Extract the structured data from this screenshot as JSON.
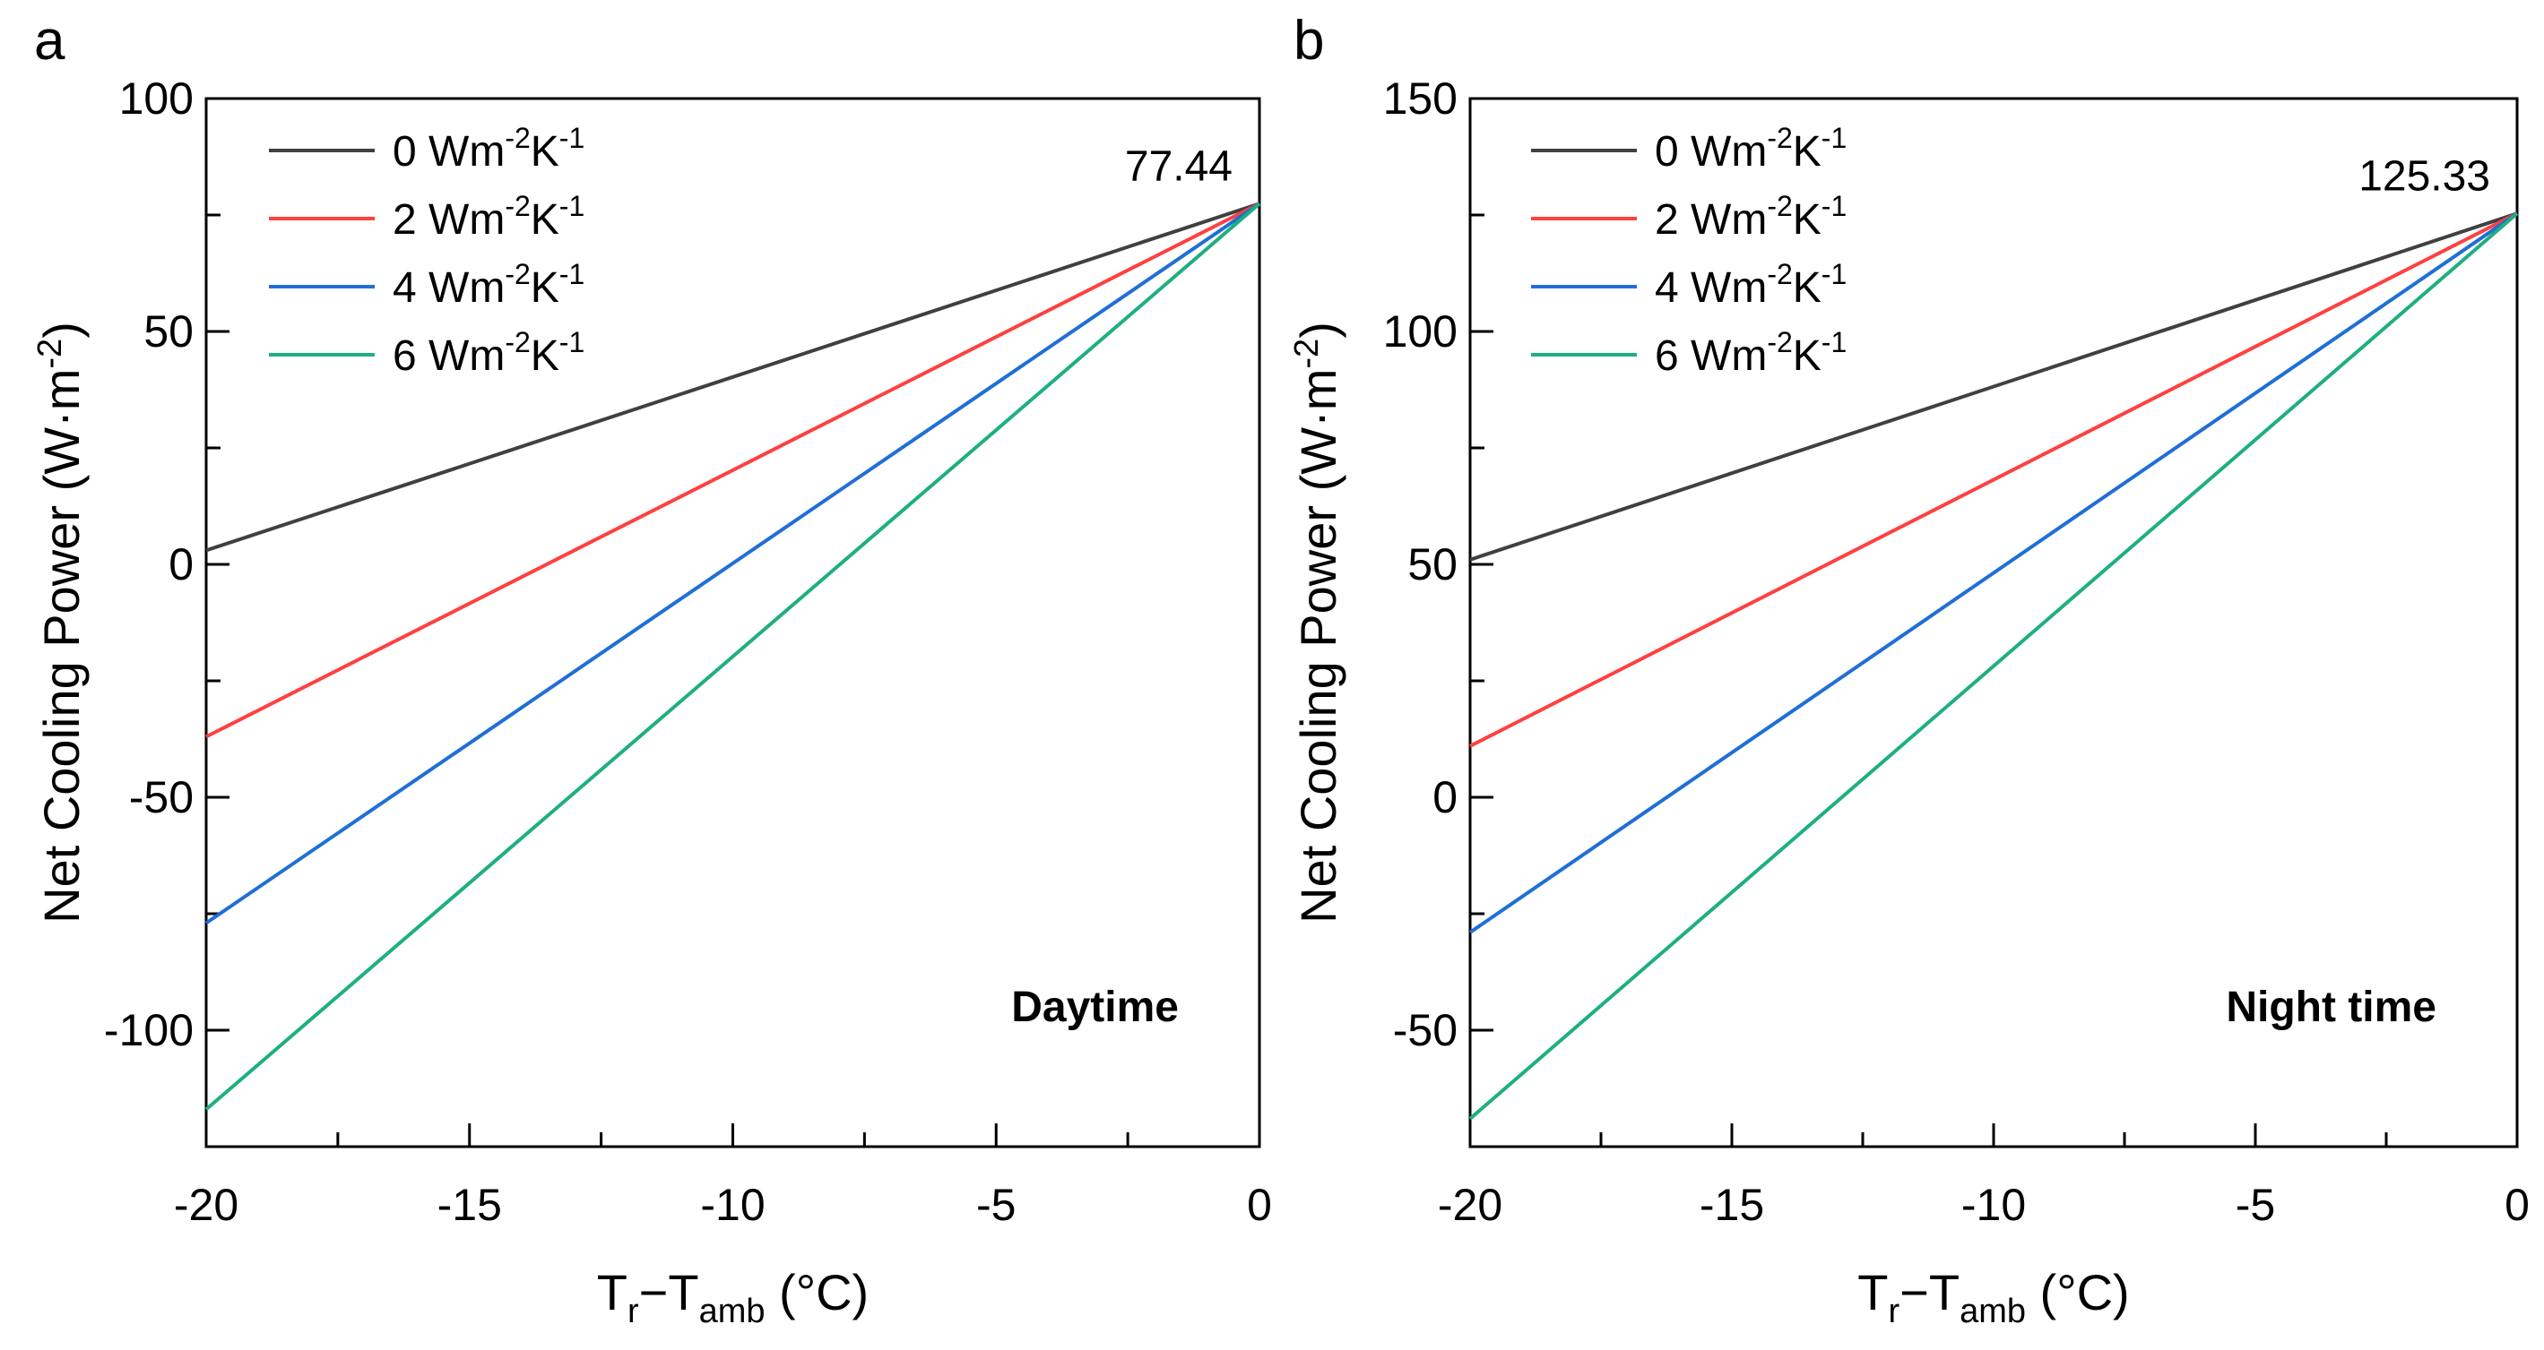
{
  "chart_data": [
    {
      "type": "line",
      "panel": "a",
      "xlabel": {
        "base": "T",
        "sub1": "r",
        "dash": "−T",
        "sub2": "amb",
        "unit": " (°C)"
      },
      "ylabel": {
        "text": "Net Cooling Power (W·m",
        "sup": "-2",
        "close": ")"
      },
      "xlim": [
        -20,
        0
      ],
      "ylim": [
        -125,
        100
      ],
      "xticks": [
        -20,
        -15,
        -10,
        -5,
        0
      ],
      "yticks": [
        -100,
        -50,
        0,
        50,
        100
      ],
      "annotation": {
        "text": "77.44",
        "x": 0,
        "y": 77.44
      },
      "condition_label": "Daytime",
      "legend_placement": "top-left",
      "series": [
        {
          "name": "0 Wm-2K-1",
          "label": {
            "num": "0",
            "unit": "Wm",
            "sup1": "-2",
            "k": "K",
            "sup2": "-1"
          },
          "color": "#404040",
          "x": [
            -20,
            0
          ],
          "values": [
            3,
            77.44
          ]
        },
        {
          "name": "2 Wm-2K-1",
          "label": {
            "num": "2",
            "unit": "Wm",
            "sup1": "-2",
            "k": "K",
            "sup2": "-1"
          },
          "color": "#ff4040",
          "x": [
            -20,
            0
          ],
          "values": [
            -37,
            77.44
          ]
        },
        {
          "name": "4 Wm-2K-1",
          "label": {
            "num": "4",
            "unit": "Wm",
            "sup1": "-2",
            "k": "K",
            "sup2": "-1"
          },
          "color": "#1f6fd6",
          "x": [
            -20,
            0
          ],
          "values": [
            -77,
            77.44
          ]
        },
        {
          "name": "6 Wm-2K-1",
          "label": {
            "num": "6",
            "unit": "Wm",
            "sup1": "-2",
            "k": "K",
            "sup2": "-1"
          },
          "color": "#1faf7f",
          "x": [
            -20,
            0
          ],
          "values": [
            -117,
            77.44
          ]
        }
      ]
    },
    {
      "type": "line",
      "panel": "b",
      "xlabel": {
        "base": "T",
        "sub1": "r",
        "dash": "−T",
        "sub2": "amb",
        "unit": " (°C)"
      },
      "ylabel": {
        "text": "Net Cooling Power (W·m",
        "sup": "-2",
        "close": ")"
      },
      "xlim": [
        -20,
        0
      ],
      "ylim": [
        -75,
        150
      ],
      "xticks": [
        -20,
        -15,
        -10,
        -5,
        0
      ],
      "yticks": [
        -50,
        0,
        50,
        100,
        150
      ],
      "annotation": {
        "text": "125.33",
        "x": 0,
        "y": 125.33
      },
      "condition_label": "Night time",
      "legend_placement": "top-left",
      "series": [
        {
          "name": "0 Wm-2K-1",
          "label": {
            "num": "0",
            "unit": "Wm",
            "sup1": "-2",
            "k": "K",
            "sup2": "-1"
          },
          "color": "#404040",
          "x": [
            -20,
            0
          ],
          "values": [
            51,
            125.33
          ]
        },
        {
          "name": "2 Wm-2K-1",
          "label": {
            "num": "2",
            "unit": "Wm",
            "sup1": "-2",
            "k": "K",
            "sup2": "-1"
          },
          "color": "#ff4040",
          "x": [
            -20,
            0
          ],
          "values": [
            11,
            125.33
          ]
        },
        {
          "name": "4 Wm-2K-1",
          "label": {
            "num": "4",
            "unit": "Wm",
            "sup1": "-2",
            "k": "K",
            "sup2": "-1"
          },
          "color": "#1f6fd6",
          "x": [
            -20,
            0
          ],
          "values": [
            -29,
            125.33
          ]
        },
        {
          "name": "6 Wm-2K-1",
          "label": {
            "num": "6",
            "unit": "Wm",
            "sup1": "-2",
            "k": "K",
            "sup2": "-1"
          },
          "color": "#1faf7f",
          "x": [
            -20,
            0
          ],
          "values": [
            -69,
            125.33
          ]
        }
      ]
    }
  ]
}
